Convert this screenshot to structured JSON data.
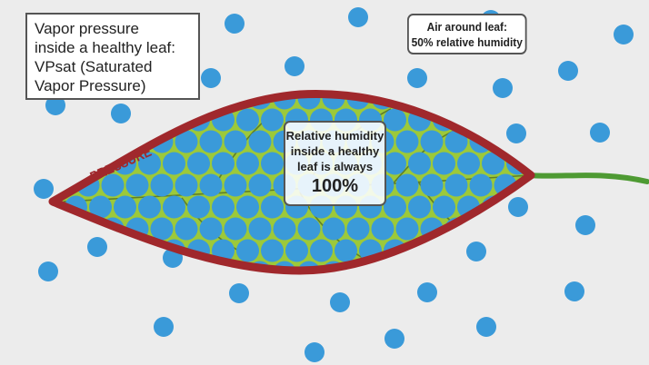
{
  "callout_vapor": {
    "lines": [
      "Vapor pressure",
      "inside a healthy leaf:",
      "VPsat (Saturated",
      "Vapor Pressure)"
    ]
  },
  "callout_air": {
    "lines": [
      "Air around leaf:",
      "50% relative humidity"
    ]
  },
  "callout_rh": {
    "lines": [
      "Relative humidity",
      "inside a healthy",
      "leaf is always"
    ],
    "value": "100%"
  },
  "pressure_label": "PRESSURE",
  "colors": {
    "background": "#ececec",
    "molecule": "#3a9ad9",
    "leaf_fill": "#9cc93a",
    "leaf_outline": "#a0282c",
    "stem": "#4e9a33",
    "vein": "#5e7e28"
  }
}
